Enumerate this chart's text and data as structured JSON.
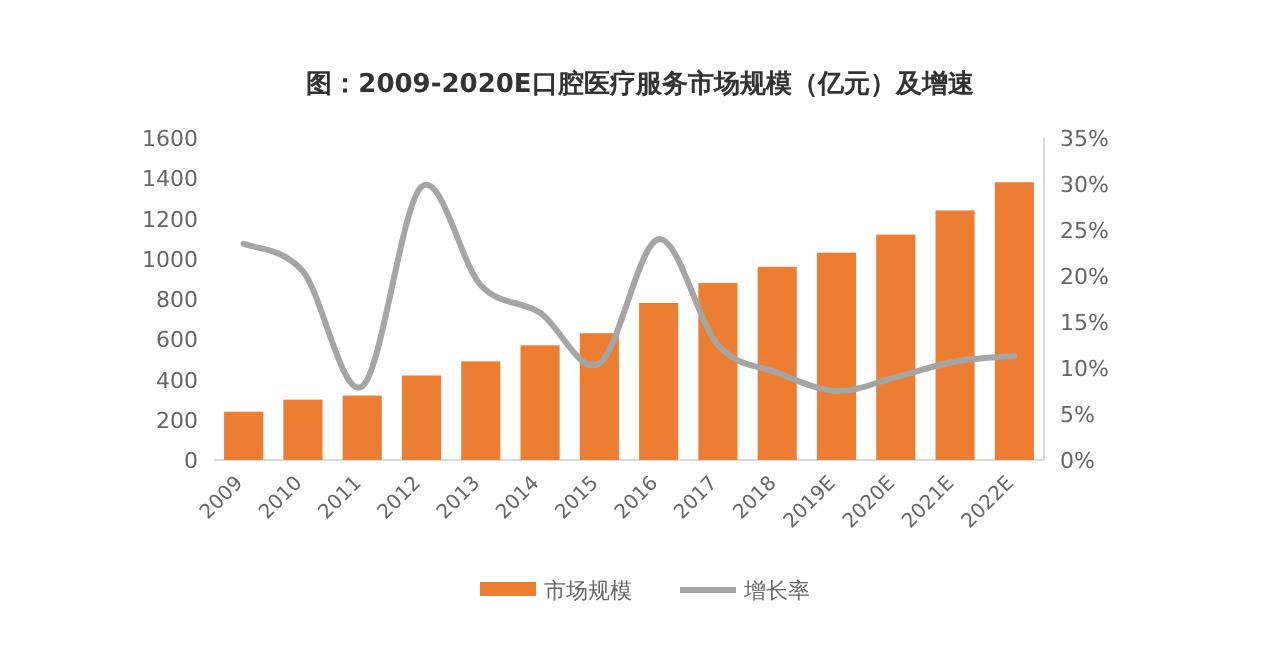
{
  "chart_data": {
    "type": "bar",
    "title": "图：2009-2020E口腔医疗服务市场规模（亿元）及增速",
    "categories": [
      "2009",
      "2010",
      "2011",
      "2012",
      "2013",
      "2014",
      "2015",
      "2016",
      "2017",
      "2018",
      "2019E",
      "2020E",
      "2021E",
      "2022E"
    ],
    "series": [
      {
        "name": "市场规模",
        "color": "#ed7d31",
        "values": [
          240,
          300,
          320,
          420,
          490,
          570,
          630,
          780,
          880,
          960,
          1030,
          1120,
          1240,
          1380
        ]
      },
      {
        "name": "增长率",
        "type": "line",
        "axis": "y2",
        "color": "#a5a5a5",
        "values": [
          23.5,
          20.5,
          8,
          29.7,
          19,
          16,
          10.5,
          24,
          12.5,
          9.5,
          7.5,
          9,
          10.7,
          11.3
        ]
      }
    ],
    "ylim": [
      0,
      1600
    ],
    "yticks": [
      0,
      200,
      400,
      600,
      800,
      1000,
      1200,
      1400,
      1600
    ],
    "y2lim": [
      0,
      35
    ],
    "y2ticks": [
      {
        "value": 0,
        "label": "0%"
      },
      {
        "value": 5,
        "label": "5%"
      },
      {
        "value": 10,
        "label": "10%"
      },
      {
        "value": 15,
        "label": "15%"
      },
      {
        "value": 20,
        "label": "20%"
      },
      {
        "value": 25,
        "label": "25%"
      },
      {
        "value": 30,
        "label": "30%"
      },
      {
        "value": 35,
        "label": "35%"
      }
    ],
    "legend": "bottom"
  }
}
